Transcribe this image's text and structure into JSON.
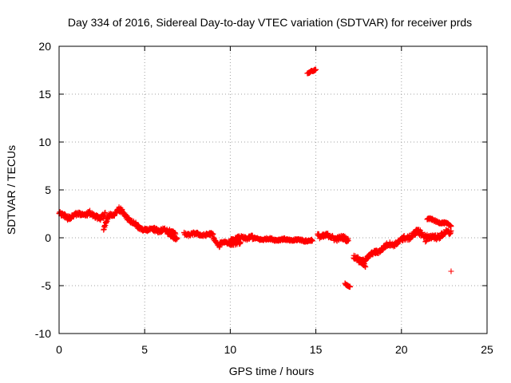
{
  "chart_data": {
    "type": "scatter",
    "title": "Day 334 of 2016, Sidereal Day-to-day VTEC variation (SDTVAR) for receiver prds",
    "xlabel": "GPS time / hours",
    "ylabel": "SDTVAR / TECUs",
    "xlim": [
      0,
      25
    ],
    "ylim": [
      -10,
      20
    ],
    "xticks": [
      0,
      5,
      10,
      15,
      20,
      25
    ],
    "yticks": [
      -10,
      -5,
      0,
      5,
      10,
      15,
      20
    ],
    "grid": true,
    "marker": "plus",
    "color": "#ff0000",
    "series": [
      {
        "name": "SDTVAR",
        "segments": [
          {
            "x_start": 0.0,
            "x_end": 0.5,
            "y_start": 2.5,
            "y_end": 2.1,
            "spread": 0.45
          },
          {
            "x_start": 0.5,
            "x_end": 1.8,
            "y_start": 2.2,
            "y_end": 2.6,
            "spread": 0.4
          },
          {
            "x_start": 1.8,
            "x_end": 2.1,
            "y_start": 2.4,
            "y_end": 2.2,
            "spread": 0.3
          },
          {
            "x_start": 2.0,
            "x_end": 2.7,
            "y_start": 2.1,
            "y_end": 2.3,
            "spread": 0.5
          },
          {
            "x_start": 2.6,
            "x_end": 2.9,
            "y_start": 0.9,
            "y_end": 2.2,
            "spread": 0.3
          },
          {
            "x_start": 2.9,
            "x_end": 3.5,
            "y_start": 2.2,
            "y_end": 3.0,
            "spread": 0.45
          },
          {
            "x_start": 3.5,
            "x_end": 4.1,
            "y_start": 2.9,
            "y_end": 2.0,
            "spread": 0.45
          },
          {
            "x_start": 4.1,
            "x_end": 4.7,
            "y_start": 1.9,
            "y_end": 1.0,
            "spread": 0.35
          },
          {
            "x_start": 4.6,
            "x_end": 5.6,
            "y_start": 1.0,
            "y_end": 0.7,
            "spread": 0.3
          },
          {
            "x_start": 5.5,
            "x_end": 6.8,
            "y_start": 0.9,
            "y_end": 0.6,
            "spread": 0.4
          },
          {
            "x_start": 6.3,
            "x_end": 6.9,
            "y_start": 0.5,
            "y_end": -0.1,
            "spread": 0.3
          },
          {
            "x_start": 7.3,
            "x_end": 9.0,
            "y_start": 0.4,
            "y_end": 0.3,
            "spread": 0.3
          },
          {
            "x_start": 9.0,
            "x_end": 9.4,
            "y_start": 0.0,
            "y_end": -0.9,
            "spread": 0.25
          },
          {
            "x_start": 9.4,
            "x_end": 10.6,
            "y_start": -0.5,
            "y_end": -0.6,
            "spread": 0.3
          },
          {
            "x_start": 10.0,
            "x_end": 11.3,
            "y_start": -0.2,
            "y_end": 0.1,
            "spread": 0.35
          },
          {
            "x_start": 11.3,
            "x_end": 14.8,
            "y_start": -0.1,
            "y_end": -0.3,
            "spread": 0.22
          },
          {
            "x_start": 15.1,
            "x_end": 16.9,
            "y_start": 0.3,
            "y_end": -0.2,
            "spread": 0.45
          },
          {
            "x_start": 17.2,
            "x_end": 17.9,
            "y_start": -2.0,
            "y_end": -2.8,
            "spread": 0.4
          },
          {
            "x_start": 17.5,
            "x_end": 18.5,
            "y_start": -2.6,
            "y_end": -1.5,
            "spread": 0.35
          },
          {
            "x_start": 18.4,
            "x_end": 19.4,
            "y_start": -1.6,
            "y_end": -0.6,
            "spread": 0.4
          },
          {
            "x_start": 19.4,
            "x_end": 20.1,
            "y_start": -0.7,
            "y_end": -0.3,
            "spread": 0.4
          },
          {
            "x_start": 20.0,
            "x_end": 21.2,
            "y_start": -0.2,
            "y_end": 0.7,
            "spread": 0.5
          },
          {
            "x_start": 20.8,
            "x_end": 21.5,
            "y_start": 0.6,
            "y_end": 0.2,
            "spread": 0.4
          },
          {
            "x_start": 21.4,
            "x_end": 22.9,
            "y_start": -0.2,
            "y_end": 0.6,
            "spread": 0.5
          },
          {
            "x_start": 21.5,
            "x_end": 22.9,
            "y_start": 2.0,
            "y_end": 1.3,
            "spread": 0.2
          },
          {
            "x_start": 14.5,
            "x_end": 15.0,
            "y_start": 17.2,
            "y_end": 17.5,
            "spread": 0.15
          },
          {
            "x_start": 16.7,
            "x_end": 17.0,
            "y_start": -4.8,
            "y_end": -5.1,
            "spread": 0.15
          }
        ],
        "isolated_points": [
          {
            "x": 22.9,
            "y": -3.5
          }
        ]
      }
    ]
  }
}
